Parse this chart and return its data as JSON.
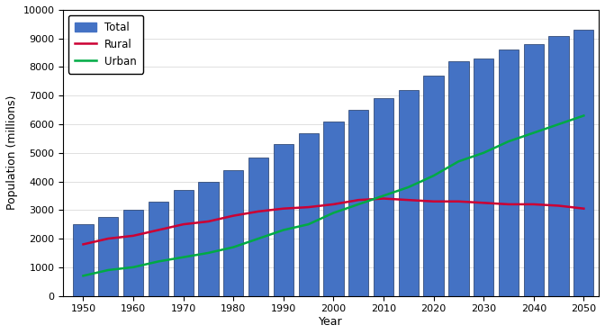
{
  "years": [
    1950,
    1955,
    1960,
    1965,
    1970,
    1975,
    1980,
    1985,
    1990,
    1995,
    2000,
    2005,
    2010,
    2015,
    2020,
    2025,
    2030,
    2035,
    2040,
    2045,
    2050
  ],
  "total": [
    2500,
    2750,
    3000,
    3300,
    3700,
    4000,
    4400,
    4850,
    5300,
    5700,
    6100,
    6500,
    6900,
    7200,
    7700,
    8200,
    8300,
    8600,
    8800,
    9100,
    9300
  ],
  "rural": [
    1800,
    2000,
    2100,
    2300,
    2500,
    2600,
    2800,
    2950,
    3050,
    3100,
    3200,
    3350,
    3400,
    3350,
    3300,
    3300,
    3250,
    3200,
    3200,
    3150,
    3050
  ],
  "urban": [
    700,
    900,
    1000,
    1200,
    1350,
    1500,
    1700,
    2000,
    2300,
    2500,
    2900,
    3200,
    3500,
    3800,
    4200,
    4700,
    5000,
    5400,
    5700,
    6000,
    6300
  ],
  "bar_color": "#4472C4",
  "bar_edge_color": "#1F3864",
  "rural_color": "#CC0033",
  "urban_color": "#00AA44",
  "bar_width": 4.0,
  "ylabel": "Population (millions)",
  "xlabel": "Year",
  "ylim": [
    0,
    10000
  ],
  "yticks": [
    0,
    1000,
    2000,
    3000,
    4000,
    5000,
    6000,
    7000,
    8000,
    9000,
    10000
  ],
  "xtick_years": [
    1950,
    1960,
    1970,
    1980,
    1990,
    2000,
    2010,
    2020,
    2030,
    2040,
    2050
  ],
  "legend_labels": [
    "Total",
    "Rural",
    "Urban"
  ],
  "background_color": "#ffffff",
  "legend_loc": "upper left"
}
